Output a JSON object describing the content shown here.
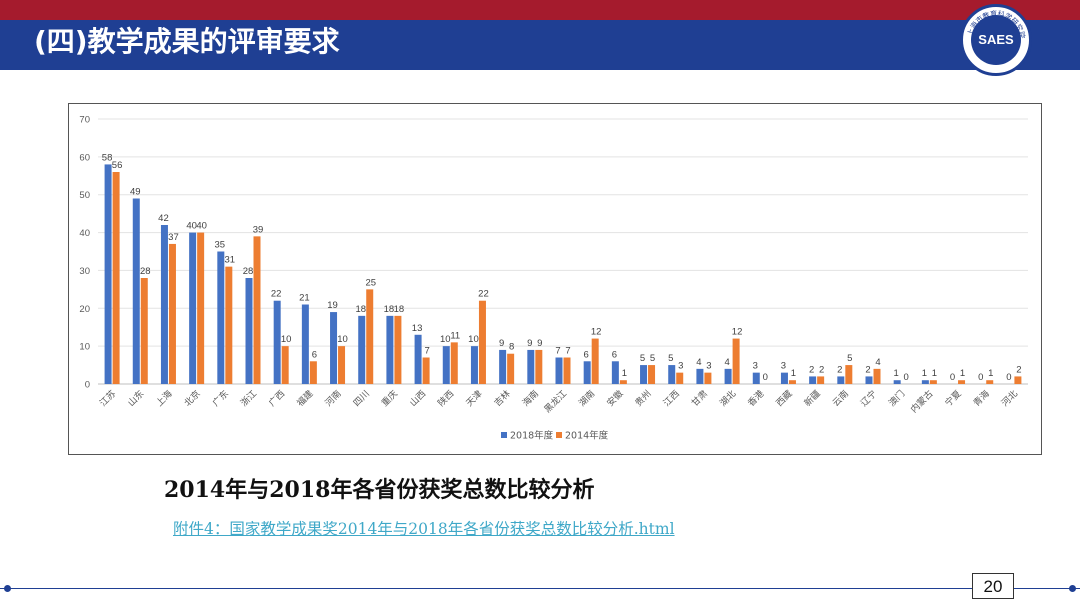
{
  "header": {
    "title": "(四)教学成果的评审要求",
    "logo_text": "SAES",
    "logo_ring_text": "上海市教育科学研究院"
  },
  "chart_data": {
    "type": "bar",
    "title": "",
    "xlabel": "",
    "ylabel": "",
    "ylim": [
      0,
      70
    ],
    "yticks": [
      0,
      10,
      20,
      30,
      40,
      50,
      60,
      70
    ],
    "categories": [
      "江苏",
      "山东",
      "上海",
      "北京",
      "广东",
      "浙江",
      "广西",
      "福建",
      "河南",
      "四川",
      "重庆",
      "山西",
      "陕西",
      "天津",
      "吉林",
      "海南",
      "黑龙江",
      "湖南",
      "安徽",
      "贵州",
      "江西",
      "甘肃",
      "湖北",
      "香港",
      "西藏",
      "新疆",
      "云南",
      "辽宁",
      "澳门",
      "内蒙古",
      "宁夏",
      "青海",
      "河北"
    ],
    "series": [
      {
        "name": "2018年度",
        "color": "#4472c4",
        "values": [
          58,
          49,
          42,
          40,
          35,
          28,
          22,
          21,
          19,
          18,
          18,
          13,
          10,
          10,
          9,
          9,
          7,
          6,
          6,
          5,
          5,
          4,
          4,
          3,
          3,
          2,
          2,
          2,
          1,
          1,
          0,
          0,
          0
        ]
      },
      {
        "name": "2014年度",
        "color": "#ed7d31",
        "values": [
          56,
          28,
          37,
          40,
          31,
          39,
          10,
          6,
          10,
          25,
          18,
          7,
          11,
          22,
          8,
          9,
          7,
          12,
          1,
          5,
          3,
          3,
          12,
          0,
          1,
          2,
          5,
          4,
          0,
          1,
          1,
          1,
          2
        ]
      }
    ],
    "legend_position": "bottom-center",
    "grid": true
  },
  "caption": "2014年与2018年各省份获奖总数比较分析",
  "attachment": "附件4：国家教学成果奖2014年与2018年各省份获奖总数比较分析.html",
  "page_number": "20"
}
